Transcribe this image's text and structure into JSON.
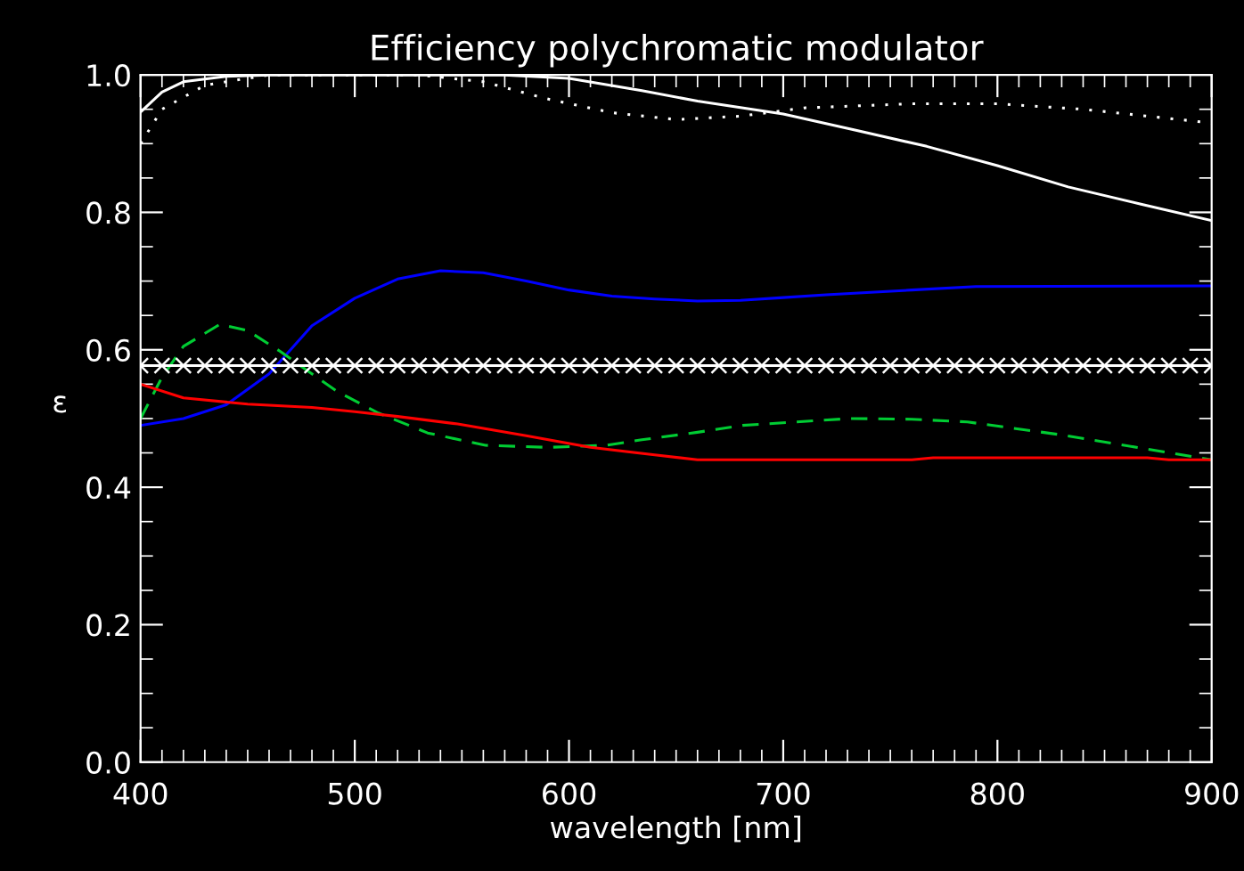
{
  "chart_data": {
    "type": "line",
    "title": "Efficiency polychromatic modulator",
    "xlabel": "wavelength [nm]",
    "ylabel": "ε",
    "xlim": [
      400,
      900
    ],
    "ylim": [
      0.0,
      1.0
    ],
    "xticks": [
      400,
      500,
      600,
      700,
      800,
      900
    ],
    "yticks": [
      {
        "value": 0.0,
        "label": "0.0"
      },
      {
        "value": 0.2,
        "label": "0.2"
      },
      {
        "value": 0.4,
        "label": "0.4"
      },
      {
        "value": 0.6,
        "label": "0.6"
      },
      {
        "value": 0.8,
        "label": "0.8"
      },
      {
        "value": 1.0,
        "label": "1.0"
      }
    ],
    "grid": false,
    "legend": false,
    "series": [
      {
        "color": "#ffffff",
        "line_style": "solid",
        "marker": "none",
        "x": [
          400,
          410,
          420,
          440,
          460,
          500,
          540,
          570,
          600,
          634,
          660,
          700,
          733,
          767,
          800,
          833,
          867,
          900
        ],
        "values": [
          0.946,
          0.975,
          0.99,
          0.998,
          1.0,
          1.0,
          1.0,
          1.0,
          0.995,
          0.977,
          0.962,
          0.943,
          0.92,
          0.896,
          0.868,
          0.837,
          0.812,
          0.788
        ]
      },
      {
        "color": "#ffffff",
        "line_style": "dotted",
        "marker": "none",
        "x": [
          400,
          410,
          430,
          460,
          530,
          560,
          590,
          620,
          650,
          680,
          710,
          760,
          800,
          840,
          870,
          900
        ],
        "values": [
          0.9,
          0.95,
          0.985,
          1.0,
          1.0,
          0.99,
          0.965,
          0.945,
          0.935,
          0.94,
          0.952,
          0.958,
          0.958,
          0.95,
          0.94,
          0.93
        ]
      },
      {
        "color": "#0000ff",
        "line_style": "solid",
        "marker": "none",
        "x": [
          400,
          420,
          440,
          460,
          470,
          480,
          500,
          520,
          540,
          560,
          580,
          600,
          620,
          640,
          660,
          680,
          700,
          720,
          760,
          790,
          900
        ],
        "values": [
          0.49,
          0.5,
          0.52,
          0.565,
          0.6,
          0.635,
          0.675,
          0.703,
          0.715,
          0.712,
          0.7,
          0.687,
          0.678,
          0.674,
          0.671,
          0.672,
          0.676,
          0.68,
          0.687,
          0.692,
          0.693
        ]
      },
      {
        "color": "#00cc33",
        "line_style": "dashed",
        "marker": "none",
        "x": [
          400,
          410,
          420,
          437,
          450,
          465,
          480,
          492,
          511,
          534,
          561,
          590,
          617,
          634,
          660,
          681,
          731,
          760,
          786,
          828,
          869,
          900
        ],
        "values": [
          0.5,
          0.56,
          0.605,
          0.637,
          0.628,
          0.598,
          0.565,
          0.539,
          0.508,
          0.479,
          0.461,
          0.458,
          0.461,
          0.469,
          0.48,
          0.49,
          0.5,
          0.499,
          0.495,
          0.477,
          0.456,
          0.44
        ]
      },
      {
        "color": "#ff0000",
        "line_style": "solid",
        "marker": "none",
        "x": [
          400,
          420,
          450,
          480,
          500,
          520,
          548,
          580,
          610,
          640,
          660,
          760,
          770,
          870,
          880,
          900
        ],
        "values": [
          0.55,
          0.53,
          0.521,
          0.516,
          0.51,
          0.503,
          0.492,
          0.475,
          0.458,
          0.447,
          0.44,
          0.44,
          0.443,
          0.443,
          0.44,
          0.44
        ]
      },
      {
        "color": "#ffffff",
        "line_style": "solid",
        "marker": "cross",
        "x": [
          400,
          410,
          420,
          430,
          440,
          450,
          460,
          470,
          480,
          490,
          500,
          510,
          520,
          530,
          540,
          550,
          560,
          570,
          580,
          590,
          600,
          610,
          620,
          630,
          640,
          650,
          660,
          670,
          680,
          690,
          700,
          710,
          720,
          730,
          740,
          750,
          760,
          770,
          780,
          790,
          800,
          810,
          820,
          830,
          840,
          850,
          860,
          870,
          880,
          890,
          900
        ],
        "values": [
          0.577,
          0.577,
          0.577,
          0.577,
          0.577,
          0.577,
          0.577,
          0.577,
          0.577,
          0.577,
          0.577,
          0.577,
          0.577,
          0.577,
          0.577,
          0.577,
          0.577,
          0.577,
          0.577,
          0.577,
          0.577,
          0.577,
          0.577,
          0.577,
          0.577,
          0.577,
          0.577,
          0.577,
          0.577,
          0.577,
          0.577,
          0.577,
          0.577,
          0.577,
          0.577,
          0.577,
          0.577,
          0.577,
          0.577,
          0.577,
          0.577,
          0.577,
          0.577,
          0.577,
          0.577,
          0.577,
          0.577,
          0.577,
          0.577,
          0.577,
          0.577
        ]
      }
    ]
  }
}
